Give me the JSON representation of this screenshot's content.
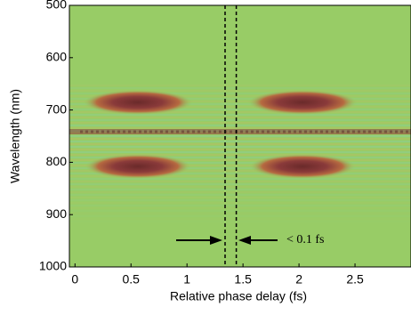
{
  "chart_data": {
    "type": "heatmap",
    "xlabel": "Relative phase delay (fs)",
    "ylabel": "Wavelength (nm)",
    "xlim": [
      -0.05,
      3.0
    ],
    "xticks": [
      0,
      0.5,
      1,
      1.5,
      2,
      2.5
    ],
    "ylim": [
      1000,
      500
    ],
    "yticks": [
      500,
      600,
      700,
      800,
      900,
      1000
    ],
    "vlines": [
      1.34,
      1.44
    ],
    "annotation": "< 0.1 fs",
    "color": "#98cc66"
  }
}
